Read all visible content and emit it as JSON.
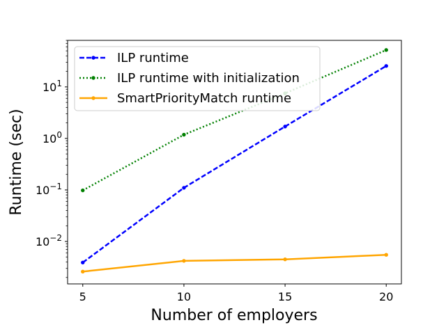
{
  "chart_data": {
    "type": "line",
    "title": "",
    "xlabel": "Number of employers",
    "ylabel": "Runtime (sec)",
    "x": [
      5,
      10,
      15,
      20
    ],
    "xticks": [
      "5",
      "10",
      "15",
      "20"
    ],
    "xlim": [
      4.25,
      20.75
    ],
    "yscale": "log",
    "ylim": [
      0.0015,
      80
    ],
    "yticks": [
      {
        "value": 0.01,
        "base": "10",
        "exp": "−2"
      },
      {
        "value": 0.1,
        "base": "10",
        "exp": "−1"
      },
      {
        "value": 1,
        "base": "10",
        "exp": "0"
      },
      {
        "value": 10,
        "base": "10",
        "exp": "1"
      }
    ],
    "grid": false,
    "legend_position": "top-left",
    "series": [
      {
        "name": "ILP runtime",
        "color": "#0000ff",
        "style": "dashed",
        "values": [
          0.0039,
          0.11,
          1.7,
          25.5
        ]
      },
      {
        "name": "ILP runtime with initialization",
        "color": "#008000",
        "style": "dotted",
        "values": [
          0.098,
          1.18,
          7.5,
          52
        ]
      },
      {
        "name": "SmartPriorityMatch runtime",
        "color": "#ffa500",
        "style": "solid",
        "values": [
          0.0026,
          0.0042,
          0.0045,
          0.0055
        ]
      }
    ]
  }
}
